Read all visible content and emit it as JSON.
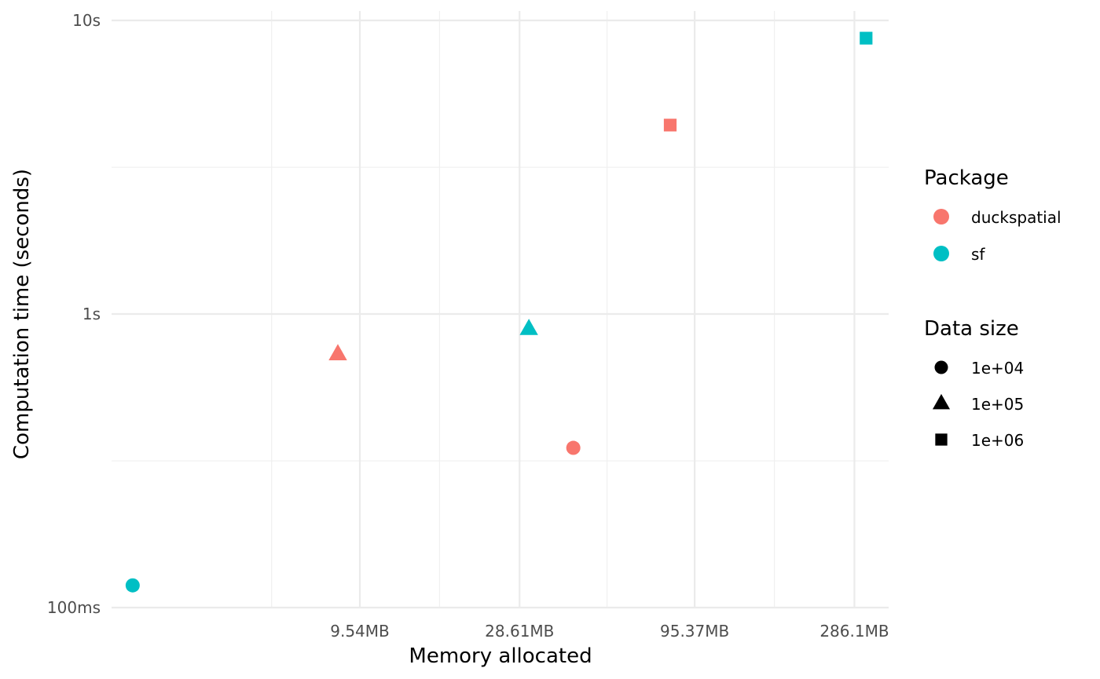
{
  "chart_data": {
    "type": "scatter",
    "title": "",
    "xlabel": "Memory allocated",
    "ylabel": "Computation time (seconds)",
    "x_scale": "log10",
    "y_scale": "log10",
    "x_unit": "MB",
    "y_unit": "seconds",
    "xlim": [
      1.73,
      362
    ],
    "ylim": [
      0.1,
      10
    ],
    "x_ticks": [
      {
        "value": 9.54,
        "label": "9.54MB"
      },
      {
        "value": 28.61,
        "label": "28.61MB"
      },
      {
        "value": 95.37,
        "label": "95.37MB"
      },
      {
        "value": 286.1,
        "label": "286.1MB"
      }
    ],
    "x_minor_ticks": [
      5.2,
      16.5,
      52.2,
      165
    ],
    "y_ticks": [
      {
        "value": 0.1,
        "label": "100ms"
      },
      {
        "value": 1,
        "label": "1s"
      },
      {
        "value": 10,
        "label": "10s"
      }
    ],
    "y_minor_ticks": [
      0.316,
      3.16
    ],
    "grid": true,
    "series": [
      {
        "name": "duckspatial",
        "color": "#F8766D",
        "points": [
          {
            "x": 41.4,
            "y": 0.35,
            "size": "1e+04"
          },
          {
            "x": 8.2,
            "y": 0.73,
            "size": "1e+05"
          },
          {
            "x": 80.6,
            "y": 4.4,
            "size": "1e+06"
          }
        ]
      },
      {
        "name": "sf",
        "color": "#00BFC4",
        "points": [
          {
            "x": 2.0,
            "y": 0.119,
            "size": "1e+04"
          },
          {
            "x": 30.5,
            "y": 0.89,
            "size": "1e+05"
          },
          {
            "x": 310,
            "y": 8.7,
            "size": "1e+06"
          }
        ]
      }
    ],
    "legend": {
      "placement": "right",
      "color_title": "Package",
      "color_items": [
        {
          "label": "duckspatial",
          "color": "#F8766D"
        },
        {
          "label": "sf",
          "color": "#00BFC4"
        }
      ],
      "shape_title": "Data size",
      "shape_items": [
        {
          "label": "1e+04",
          "shape": "circle"
        },
        {
          "label": "1e+05",
          "shape": "triangle"
        },
        {
          "label": "1e+06",
          "shape": "square"
        }
      ]
    }
  }
}
